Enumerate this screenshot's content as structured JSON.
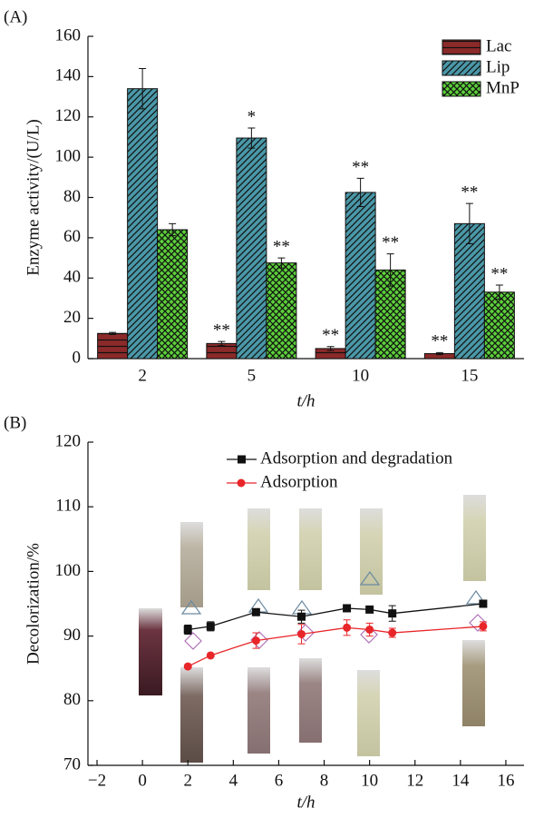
{
  "chart_data": [
    {
      "type": "bar",
      "panel": "(A)",
      "ylabel": "Enzyme activity/(U/L)",
      "xlabel": "t/h",
      "categories": [
        "2",
        "5",
        "10",
        "15"
      ],
      "series": [
        {
          "name": "Lac",
          "color": "#8b2a2a",
          "values": [
            12.5,
            7.5,
            5,
            2.5
          ],
          "errors": [
            0.5,
            1,
            1,
            0.5
          ],
          "sig_labels": [
            null,
            "**",
            "**",
            "**"
          ]
        },
        {
          "name": "Lip",
          "color": "#4a98a8",
          "values": [
            134,
            109.5,
            82.5,
            67
          ],
          "errors": [
            10,
            5,
            7,
            10
          ],
          "sig_labels": [
            null,
            "*",
            "**",
            "**"
          ]
        },
        {
          "name": "MnP",
          "color": "#5ccf3a",
          "values": [
            64,
            47.5,
            44,
            33
          ],
          "errors": [
            3,
            2.5,
            8,
            3.5
          ],
          "sig_labels": [
            null,
            "**",
            "**",
            "**"
          ]
        }
      ],
      "ylim": [
        0,
        160
      ],
      "yticks": [
        0,
        20,
        40,
        60,
        80,
        100,
        120,
        140,
        160
      ],
      "legend": "upper right"
    },
    {
      "type": "line",
      "panel": "(B)",
      "ylabel": "Decolorization/%",
      "xlabel": "t/h",
      "series": [
        {
          "name": "Adsorption and degradation",
          "color": "#111111",
          "marker": "square",
          "x": [
            2,
            3,
            5,
            7,
            9,
            10,
            11,
            15
          ],
          "values": [
            91,
            91.5,
            93.7,
            93,
            94.3,
            94.1,
            93.5,
            95
          ],
          "errors": [
            0.7,
            0.7,
            0.3,
            1,
            0.3,
            0.5,
            1.2,
            0.4
          ]
        },
        {
          "name": "Adsorption",
          "color": "#e8262a",
          "marker": "circle",
          "x": [
            2,
            3,
            5,
            7,
            9,
            10,
            11,
            15
          ],
          "values": [
            85.3,
            87,
            89.3,
            90.3,
            91.3,
            91,
            90.5,
            91.5
          ],
          "errors": [
            0,
            0,
            1.2,
            1.5,
            1.2,
            1,
            0.7,
            0.7
          ]
        }
      ],
      "xlim": [
        -2.4,
        16.8
      ],
      "xticks": [
        {
          "value": -2,
          "label": "−2"
        },
        0,
        2,
        4,
        6,
        8,
        10,
        12,
        14,
        16
      ],
      "ylim": [
        70,
        120
      ],
      "yticks": [
        70,
        80,
        90,
        100,
        110,
        120
      ],
      "legend": "upper center"
    }
  ]
}
